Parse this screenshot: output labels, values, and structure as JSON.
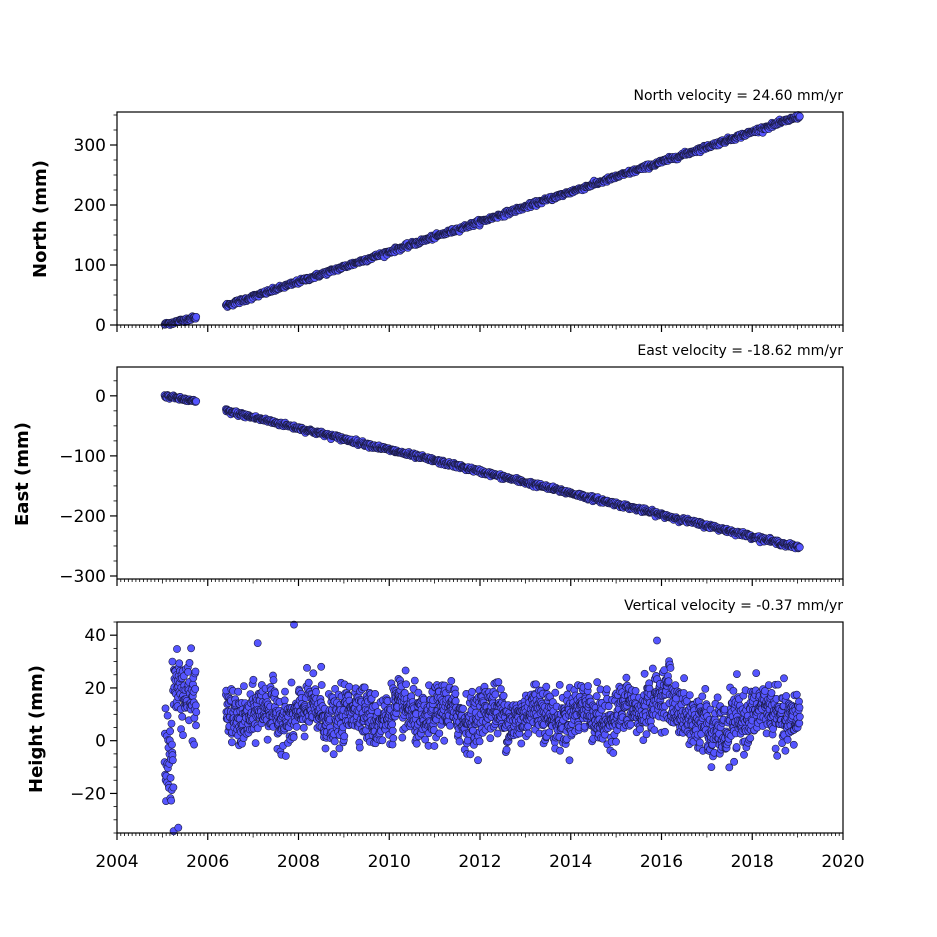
{
  "chart_data": [
    {
      "type": "scatter",
      "panel": "north",
      "title": "North velocity = 24.60 mm/yr",
      "xlabel": "",
      "ylabel": "North (mm)",
      "xlim": [
        2004,
        2020
      ],
      "ylim": [
        0,
        355
      ],
      "yticks": [
        0,
        100,
        200,
        300
      ],
      "ytick_labels": [
        "0",
        "100",
        "200",
        "300"
      ],
      "xtick_labels_shown": false,
      "grid": false,
      "segments": [
        {
          "x_start": 2005.05,
          "y_start": 1,
          "x_end": 2005.75,
          "y_end": 13,
          "noise": 1.5
        },
        {
          "x_start": 2006.4,
          "y_start": 32,
          "x_end": 2019.05,
          "y_end": 348,
          "noise": 1.8
        }
      ],
      "point_spacing_years": 0.012,
      "marker_color": "#5555ff",
      "edge_color": "#1a1a40"
    },
    {
      "type": "scatter",
      "panel": "east",
      "title": "East velocity = -18.62 mm/yr",
      "xlabel": "",
      "ylabel": "East (mm)",
      "xlim": [
        2004,
        2020
      ],
      "ylim": [
        -305,
        48
      ],
      "yticks": [
        0,
        -100,
        -200,
        -300
      ],
      "ytick_labels": [
        "0",
        "−100",
        "−200",
        "−300"
      ],
      "xtick_labels_shown": false,
      "grid": false,
      "segments": [
        {
          "x_start": 2005.05,
          "y_start": 0,
          "x_end": 2005.75,
          "y_end": -10,
          "noise": 1.5
        },
        {
          "x_start": 2006.4,
          "y_start": -25,
          "x_end": 2019.05,
          "y_end": -253,
          "noise": 1.8
        }
      ],
      "point_spacing_years": 0.012,
      "marker_color": "#5555ff",
      "edge_color": "#1a1a40"
    },
    {
      "type": "scatter",
      "panel": "height",
      "title": "Vertical velocity = -0.37 mm/yr",
      "xlabel": "",
      "ylabel": "Height (mm)",
      "xlim": [
        2004,
        2020
      ],
      "ylim": [
        -35,
        45
      ],
      "yticks": [
        -20,
        0,
        20,
        40
      ],
      "ytick_labels": [
        "−20",
        "0",
        "20",
        "40"
      ],
      "xticks": [
        2004,
        2006,
        2008,
        2010,
        2012,
        2014,
        2016,
        2018,
        2020
      ],
      "xtick_labels": [
        "2004",
        "2006",
        "2008",
        "2010",
        "2012",
        "2014",
        "2016",
        "2018",
        "2020"
      ],
      "grid": false,
      "segments": [
        {
          "x_start": 2005.05,
          "x_end": 2005.25,
          "baseline": -8,
          "noise": 10
        },
        {
          "x_start": 2005.25,
          "x_end": 2005.75,
          "baseline": 18,
          "noise": 7
        },
        {
          "x_start": 2006.4,
          "x_end": 2019.05,
          "baseline": 10,
          "noise": 5
        }
      ],
      "seasonal_amplitude": 3,
      "point_spacing_years": 0.006,
      "outliers": [
        {
          "x": 2005.22,
          "y": 30
        },
        {
          "x": 2005.35,
          "y": -33
        },
        {
          "x": 2007.1,
          "y": 37
        },
        {
          "x": 2007.9,
          "y": 44
        },
        {
          "x": 2008.5,
          "y": 28
        },
        {
          "x": 2015.9,
          "y": 38
        },
        {
          "x": 2017.1,
          "y": -10
        },
        {
          "x": 2017.6,
          "y": -8
        }
      ],
      "marker_color": "#5555ff",
      "edge_color": "#1a1a40"
    }
  ]
}
